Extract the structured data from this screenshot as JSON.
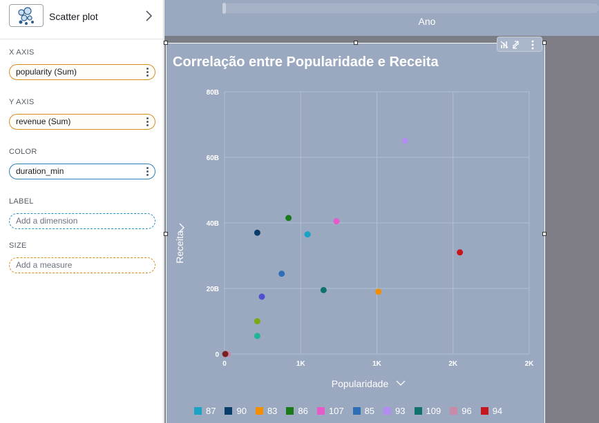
{
  "panel": {
    "visual_type_label": "Scatter plot",
    "wells": [
      {
        "label": "X AXIS",
        "value": "popularity (Sum)",
        "style": "dim"
      },
      {
        "label": "Y AXIS",
        "value": "revenue (Sum)",
        "style": "dim"
      },
      {
        "label": "COLOR",
        "value": "duration_min",
        "style": "col"
      },
      {
        "label": "LABEL",
        "value": "Add a dimension",
        "style": "dotted-blue"
      },
      {
        "label": "SIZE",
        "value": "Add a measure",
        "style": "dotted-orange"
      }
    ]
  },
  "top_visual": {
    "axis_title": "Ano"
  },
  "chart_data": {
    "type": "scatter",
    "title": "Correlação entre Popularidade e Receita",
    "xlabel": "Popularidade",
    "ylabel": "Receita",
    "x_ticks": [
      "0",
      "1K",
      "1K",
      "2K",
      "2K"
    ],
    "x_tick_values": [
      0,
      500,
      1000,
      1500,
      2000
    ],
    "y_ticks": [
      "0",
      "20B",
      "40B",
      "60B",
      "80B"
    ],
    "y_tick_values": [
      0,
      20,
      40,
      60,
      80
    ],
    "xlim": [
      0,
      2000
    ],
    "ylim": [
      0,
      80
    ],
    "grid": true,
    "legend_position": "bottom",
    "series": [
      {
        "name": "87",
        "color": "#1ba3c6",
        "points": [
          {
            "x": 545,
            "y": 36.5
          },
          {
            "x": 545,
            "y": 36.5
          }
        ]
      },
      {
        "name": "90",
        "color": "#0b3d6b",
        "points": [
          {
            "x": 215,
            "y": 37
          }
        ]
      },
      {
        "name": "83",
        "color": "#f28e00",
        "points": [
          {
            "x": 1010,
            "y": 19
          }
        ]
      },
      {
        "name": "86",
        "color": "#1a7a1a",
        "points": [
          {
            "x": 420,
            "y": 41.5
          }
        ]
      },
      {
        "name": "107",
        "color": "#e55bc9",
        "points": [
          {
            "x": 735,
            "y": 40.5
          }
        ]
      },
      {
        "name": "85",
        "color": "#2c6fb6",
        "points": [
          {
            "x": 375,
            "y": 24.5
          }
        ]
      },
      {
        "name": "93",
        "color": "#b38cf2",
        "points": [
          {
            "x": 1185,
            "y": 65
          }
        ]
      },
      {
        "name": "109",
        "color": "#10726a",
        "points": [
          {
            "x": 650,
            "y": 19.5
          }
        ]
      },
      {
        "name": "96",
        "color": "#c98aa8",
        "points": [
          {
            "x": 22,
            "y": 0
          }
        ]
      },
      {
        "name": "94",
        "color": "#c4161c",
        "points": [
          {
            "x": 1545,
            "y": 31
          }
        ]
      }
    ],
    "extra_points": [
      {
        "x": 245,
        "y": 17.5,
        "color": "#4e4fd1"
      },
      {
        "x": 215,
        "y": 10,
        "color": "#7aaa12"
      },
      {
        "x": 215,
        "y": 5.5,
        "color": "#20b496"
      },
      {
        "x": 5,
        "y": 0,
        "color": "#7a2020"
      }
    ]
  }
}
